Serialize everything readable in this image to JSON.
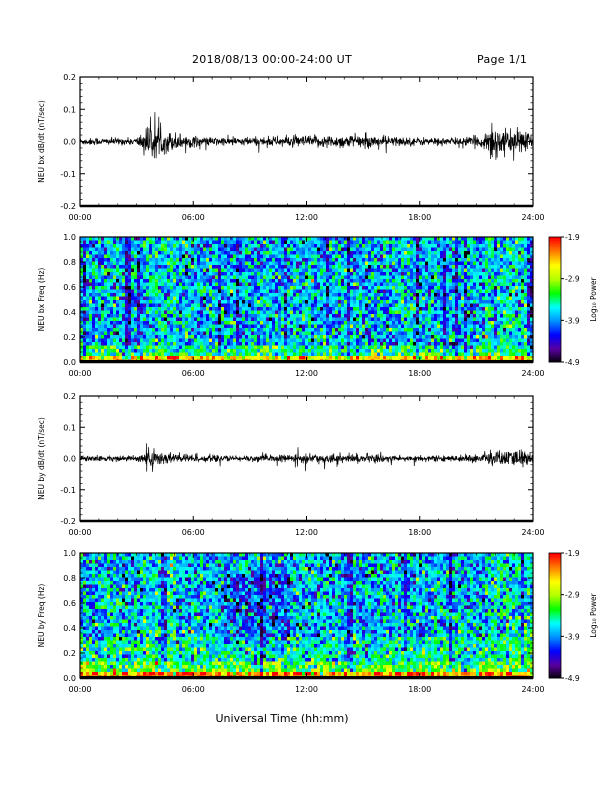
{
  "header": {
    "date_range": "2018/08/13  00:00-24:00 UT",
    "page": "Page 1/1"
  },
  "colorbar": {
    "label": "Log₁₀ Power",
    "ticks": [
      "-1.9",
      "-2.9",
      "-3.9",
      "-4.9"
    ],
    "range": [
      -4.9,
      -1.9
    ],
    "colors": [
      "#000000",
      "#5a00a0",
      "#0000ff",
      "#0090ff",
      "#00ffff",
      "#00ff00",
      "#b0ff00",
      "#ffff00",
      "#ff8000",
      "#ff0000"
    ]
  },
  "x_axis": {
    "label": "Universal Time (hh:mm)",
    "ticks": [
      "00:00",
      "06:00",
      "12:00",
      "18:00",
      "24:00"
    ],
    "range_hours": [
      0,
      24
    ]
  },
  "chart_data": [
    {
      "type": "line",
      "ylabel": "NEU bx dB/dt (nT/sec)",
      "ylim": [
        -0.2,
        0.2
      ],
      "yticks": [
        "0.2",
        "0.1",
        "0.0",
        "-0.1",
        "-0.2"
      ],
      "xlim": [
        "00:00",
        "24:00"
      ],
      "color": "#000000",
      "series": [
        {
          "envelope_hours": [
            0,
            3,
            3.4,
            3.8,
            4.3,
            5.5,
            6.5,
            8,
            10,
            12,
            14,
            16,
            17.5,
            20,
            21.4,
            21.8,
            22.3,
            23,
            23.5,
            24
          ],
          "envelope_amplitude": [
            0.012,
            0.012,
            0.045,
            0.06,
            0.04,
            0.025,
            0.015,
            0.014,
            0.016,
            0.02,
            0.022,
            0.02,
            0.014,
            0.013,
            0.02,
            0.08,
            0.04,
            0.035,
            0.045,
            0.02
          ]
        }
      ]
    },
    {
      "type": "heatmap",
      "ylabel": "NEU bx Freq (Hz)",
      "ylim": [
        0.0,
        1.0
      ],
      "yticks": [
        "1.0",
        "0.8",
        "0.6",
        "0.4",
        "0.2",
        "0.0"
      ],
      "xlim": [
        "00:00",
        "24:00"
      ],
      "zlim": [
        -4.9,
        -1.9
      ]
    },
    {
      "type": "line",
      "ylabel": "NEU by dB/dt (nT/sec)",
      "ylim": [
        -0.2,
        0.2
      ],
      "yticks": [
        "0.2",
        "0.1",
        "0.0",
        "-0.1",
        "-0.2"
      ],
      "xlim": [
        "00:00",
        "24:00"
      ],
      "color": "#000000",
      "series": [
        {
          "envelope_hours": [
            0,
            3,
            3.4,
            3.8,
            4.3,
            5.5,
            6.5,
            8,
            10,
            12,
            14,
            16,
            17.5,
            20,
            21.4,
            21.8,
            22.3,
            23,
            23.5,
            24
          ],
          "envelope_amplitude": [
            0.01,
            0.01,
            0.03,
            0.04,
            0.025,
            0.018,
            0.012,
            0.01,
            0.012,
            0.015,
            0.016,
            0.014,
            0.01,
            0.01,
            0.018,
            0.035,
            0.025,
            0.03,
            0.035,
            0.015
          ]
        }
      ]
    },
    {
      "type": "heatmap",
      "ylabel": "NEU by Freq (Hz)",
      "ylim": [
        0.0,
        1.0
      ],
      "yticks": [
        "1.0",
        "0.8",
        "0.6",
        "0.4",
        "0.2",
        "0.0"
      ],
      "xlim": [
        "00:00",
        "24:00"
      ],
      "zlim": [
        -4.9,
        -1.9
      ]
    }
  ]
}
